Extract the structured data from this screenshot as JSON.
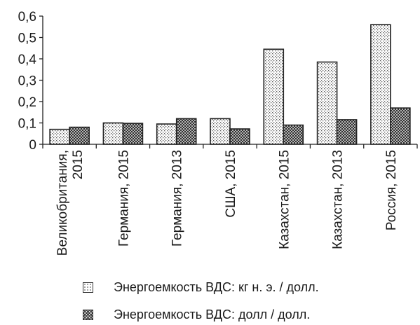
{
  "chart_data": {
    "type": "bar",
    "title": "",
    "xlabel": "",
    "ylabel": "",
    "ylim": [
      0,
      0.6
    ],
    "yticks": [
      "0",
      "0,1",
      "0,2",
      "0,3",
      "0,4",
      "0,5",
      "0,6"
    ],
    "grid": false,
    "legend_position": "bottom",
    "categories": [
      [
        "Великобритания,",
        "2015"
      ],
      [
        "Германия, 2015"
      ],
      [
        "Германия, 2013"
      ],
      [
        "США, 2015"
      ],
      [
        "Казахстан, 2015"
      ],
      [
        "Казахстан, 2013"
      ],
      [
        "Россия, 2015"
      ]
    ],
    "series": [
      {
        "name": "Энергоемкость ВДС: кг н. э. / долл.",
        "pattern": "dots",
        "values": [
          0.07,
          0.1,
          0.095,
          0.12,
          0.445,
          0.385,
          0.56
        ]
      },
      {
        "name": "Энергоемкость ВДС: долл / долл.",
        "pattern": "crosshatch",
        "values": [
          0.08,
          0.098,
          0.12,
          0.072,
          0.09,
          0.115,
          0.17
        ]
      }
    ]
  }
}
